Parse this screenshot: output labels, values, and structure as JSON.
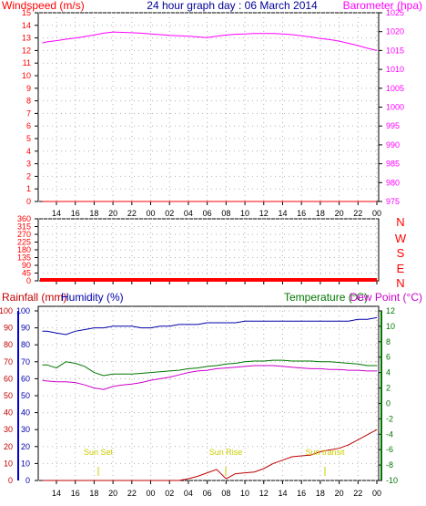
{
  "title": "24 hour graph day : 06 March 2014",
  "colors": {
    "wind": "#ff0000",
    "rain": "#c00000",
    "baro": "#ff00ff",
    "dir": "#ff0000",
    "humidity": "#0000aa",
    "temp": "#007700",
    "dew": "#cc00cc",
    "sun": "#cccc00",
    "grid": "#b0b0b0",
    "axisLeft3": "#0000cc"
  },
  "hour_labels": [
    "14",
    "16",
    "18",
    "20",
    "22",
    "00",
    "02",
    "04",
    "06",
    "08",
    "10",
    "12",
    "14",
    "16",
    "18",
    "20",
    "22",
    "00"
  ],
  "panel1": {
    "left_label": "Windspeed (m/s)",
    "right_label": "Barometer (hpa)",
    "left_ticks": [
      "0",
      "1",
      "2",
      "3",
      "4",
      "5",
      "6",
      "7",
      "8",
      "9",
      "10",
      "11",
      "12",
      "13",
      "14",
      "15"
    ],
    "right_ticks": [
      "975",
      "980",
      "985",
      "990",
      "995",
      "1000",
      "1005",
      "1010",
      "1015",
      "1020",
      "1025"
    ]
  },
  "panel2": {
    "left_ticks": [
      "0",
      "45",
      "90",
      "135",
      "180",
      "225",
      "270",
      "315",
      "360"
    ],
    "compass": [
      "N",
      "W",
      "S",
      "E",
      "N"
    ]
  },
  "panel3": {
    "rain_label": "Rainfall (mm)",
    "humidity_label": "Humidity (%)",
    "temp_label": "Temperature (°C)",
    "dew_label": "Dew Point (°C)",
    "rain_ticks": [
      "0",
      "10",
      "20",
      "30",
      "40",
      "50",
      "60",
      "70",
      "80",
      "90",
      "100"
    ],
    "hum_ticks": [
      "0",
      "10",
      "20",
      "30",
      "40",
      "50",
      "60",
      "70",
      "80",
      "90",
      "100"
    ],
    "temp_ticks": [
      "-10",
      "-8",
      "-6",
      "-4",
      "-2",
      "0",
      "2",
      "4",
      "6",
      "8",
      "10",
      "12"
    ],
    "sunset_label": "Sun Set",
    "sunrise_label": "Sun Rise",
    "suntransit_label": "Sun transit"
  },
  "chart_data": [
    {
      "type": "line",
      "title": "24 hour graph day : 06 March 2014",
      "xlabel": "",
      "ylabel": "Windspeed (m/s)",
      "ylim": [
        0,
        15
      ],
      "y2label": "Barometer (hpa)",
      "y2lim": [
        975,
        1025
      ],
      "x": [
        "12:30",
        "13",
        "14",
        "15",
        "16",
        "17",
        "18",
        "19",
        "20",
        "21",
        "22",
        "23",
        "00",
        "01",
        "02",
        "03",
        "04",
        "05",
        "06",
        "07",
        "08",
        "09",
        "10",
        "11",
        "12",
        "13",
        "14",
        "15",
        "16",
        "17",
        "18",
        "19",
        "20",
        "21",
        "22",
        "23",
        "00"
      ],
      "series": [
        {
          "name": "Windspeed (m/s)",
          "axis": "left",
          "values": [
            0,
            0,
            0,
            0,
            0,
            0,
            0,
            0,
            0,
            0,
            0,
            0,
            0,
            0,
            0,
            0,
            0,
            0,
            0,
            0,
            0,
            0,
            0,
            0,
            0,
            0,
            0,
            0,
            0,
            0,
            0,
            0,
            0,
            0,
            0,
            0,
            0
          ]
        },
        {
          "name": "Barometer (hpa)",
          "axis": "right",
          "values": [
            1017.0,
            1017.3,
            1017.6,
            1018.0,
            1018.3,
            1018.7,
            1019.1,
            1019.6,
            1019.9,
            1019.8,
            1019.7,
            1019.6,
            1019.4,
            1019.2,
            1019.0,
            1018.9,
            1018.8,
            1018.6,
            1018.4,
            1018.8,
            1019.1,
            1019.3,
            1019.4,
            1019.5,
            1019.5,
            1019.5,
            1019.4,
            1019.2,
            1018.9,
            1018.6,
            1018.2,
            1017.9,
            1017.5,
            1016.9,
            1016.3,
            1015.6,
            1015.0
          ]
        }
      ]
    },
    {
      "type": "line",
      "ylabel": "",
      "ylim": [
        0,
        360
      ],
      "x": [
        "12:30",
        "00"
      ],
      "series": [
        {
          "name": "",
          "values": [
            0,
            0
          ]
        }
      ]
    },
    {
      "type": "line",
      "ylabel": "Rainfall (mm) / Humidity (%)",
      "ylim": [
        0,
        100
      ],
      "y2label": "Temperature (°C) / Dew Point (°C)",
      "y2lim": [
        -10,
        12
      ],
      "x": [
        "12:30",
        "13",
        "14",
        "15",
        "16",
        "17",
        "18",
        "19",
        "20",
        "21",
        "22",
        "23",
        "00",
        "01",
        "02",
        "03",
        "04",
        "05",
        "06",
        "07",
        "08",
        "09",
        "10",
        "11",
        "12",
        "13",
        "14",
        "15",
        "16",
        "17",
        "18",
        "19",
        "20",
        "21",
        "22",
        "23",
        "00"
      ],
      "series": [
        {
          "name": "Rainfall (mm)",
          "axis": "left",
          "values": [
            0,
            0,
            0,
            0,
            0,
            0,
            0,
            0,
            0,
            0,
            0,
            0,
            0,
            0,
            0,
            0,
            1,
            2.5,
            4.5,
            6.5,
            1,
            4,
            4.5,
            5,
            7,
            10,
            12,
            14,
            14.5,
            15,
            17,
            18,
            19,
            21,
            24,
            27,
            30
          ]
        },
        {
          "name": "Humidity (%)",
          "axis": "left",
          "values": [
            88,
            88,
            87,
            86,
            88,
            89,
            90,
            90,
            91,
            91,
            91,
            90,
            90,
            91,
            91,
            92,
            92,
            92,
            93,
            93,
            93,
            93,
            94,
            94,
            94,
            94,
            94,
            94,
            94,
            94,
            94,
            94,
            94,
            94,
            95,
            95,
            96
          ]
        },
        {
          "name": "Temperature (°C)",
          "axis": "right",
          "values": [
            5.0,
            5.0,
            4.6,
            5.4,
            5.2,
            4.8,
            4.0,
            3.6,
            3.8,
            3.8,
            3.8,
            3.9,
            4.0,
            4.1,
            4.2,
            4.3,
            4.5,
            4.6,
            4.8,
            4.9,
            5.1,
            5.2,
            5.4,
            5.5,
            5.5,
            5.6,
            5.6,
            5.5,
            5.5,
            5.5,
            5.4,
            5.4,
            5.3,
            5.2,
            5.1,
            4.9,
            4.9
          ]
        },
        {
          "name": "Dew Point (°C)",
          "axis": "right",
          "values": [
            3.0,
            2.9,
            2.8,
            2.8,
            2.7,
            2.4,
            2.0,
            1.8,
            2.2,
            2.4,
            2.5,
            2.7,
            3.0,
            3.2,
            3.4,
            3.7,
            4.0,
            4.2,
            4.3,
            4.5,
            4.6,
            4.7,
            4.8,
            4.9,
            4.9,
            4.9,
            4.8,
            4.7,
            4.6,
            4.5,
            4.5,
            4.4,
            4.4,
            4.3,
            4.3,
            4.2,
            4.2
          ]
        }
      ]
    }
  ]
}
